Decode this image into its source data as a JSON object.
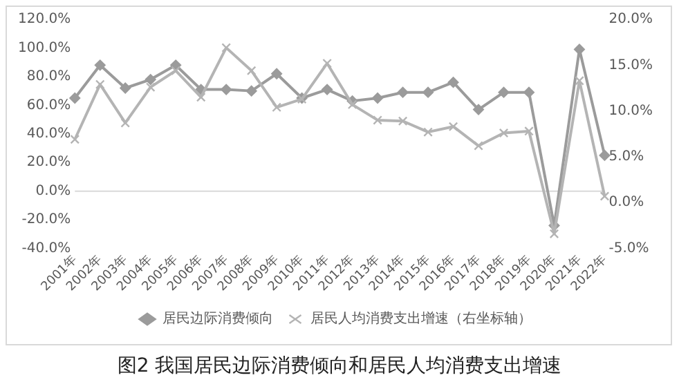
{
  "chart_data": {
    "type": "line",
    "title": "图2 我国居民边际消费倾向和居民人均消费支出增速",
    "categories": [
      "2001年",
      "2002年",
      "2003年",
      "2004年",
      "2005年",
      "2006年",
      "2007年",
      "2008年",
      "2009年",
      "2010年",
      "2011年",
      "2012年",
      "2013年",
      "2014年",
      "2015年",
      "2016年",
      "2017年",
      "2018年",
      "2019年",
      "2020年",
      "2021年",
      "2022年"
    ],
    "series": [
      {
        "name": "居民边际消费倾向",
        "color": "#9b9b9b",
        "marker": "diamond",
        "values": [
          65,
          88,
          72,
          78,
          88,
          71,
          71,
          70,
          82,
          65,
          71,
          63,
          65,
          69,
          69,
          76,
          57,
          69,
          69,
          -24,
          99,
          25
        ]
      },
      {
        "name": "居民人均消费支出增速（右坐标轴）",
        "color": "#b4b4b4",
        "marker": "cross",
        "axis": "y2",
        "values": [
          6.9,
          12.9,
          8.7,
          12.6,
          14.4,
          11.5,
          16.9,
          14.4,
          10.4,
          11.3,
          15.2,
          10.7,
          9.0,
          8.9,
          7.7,
          8.3,
          6.2,
          7.6,
          7.8,
          -3.4,
          13.3,
          0.7
        ]
      }
    ],
    "ylim": [
      -40,
      120
    ],
    "yticks": [
      {
        "value": -40,
        "label": "-40.0%"
      },
      {
        "value": -20,
        "label": "-20.0%"
      },
      {
        "value": 0,
        "label": "0.0%"
      },
      {
        "value": 20,
        "label": "20.0%"
      },
      {
        "value": 40,
        "label": "40.0%"
      },
      {
        "value": 60,
        "label": "60.0%"
      },
      {
        "value": 80,
        "label": "80.0%"
      },
      {
        "value": 100,
        "label": "100.0%"
      },
      {
        "value": 120,
        "label": "120.0%"
      }
    ],
    "y2lim": [
      -5,
      20
    ],
    "y2ticks": [
      {
        "value": -5,
        "label": "-5.0%"
      },
      {
        "value": 0,
        "label": "0.0%"
      },
      {
        "value": 5,
        "label": "5.0%"
      },
      {
        "value": 10,
        "label": "10.0%"
      },
      {
        "value": 15,
        "label": "15.0%"
      },
      {
        "value": 20,
        "label": "20.0%"
      }
    ],
    "ref_lines": [
      {
        "axis": "y",
        "value": 0,
        "color": "#d9d9d9"
      }
    ],
    "legend": "bottom"
  }
}
